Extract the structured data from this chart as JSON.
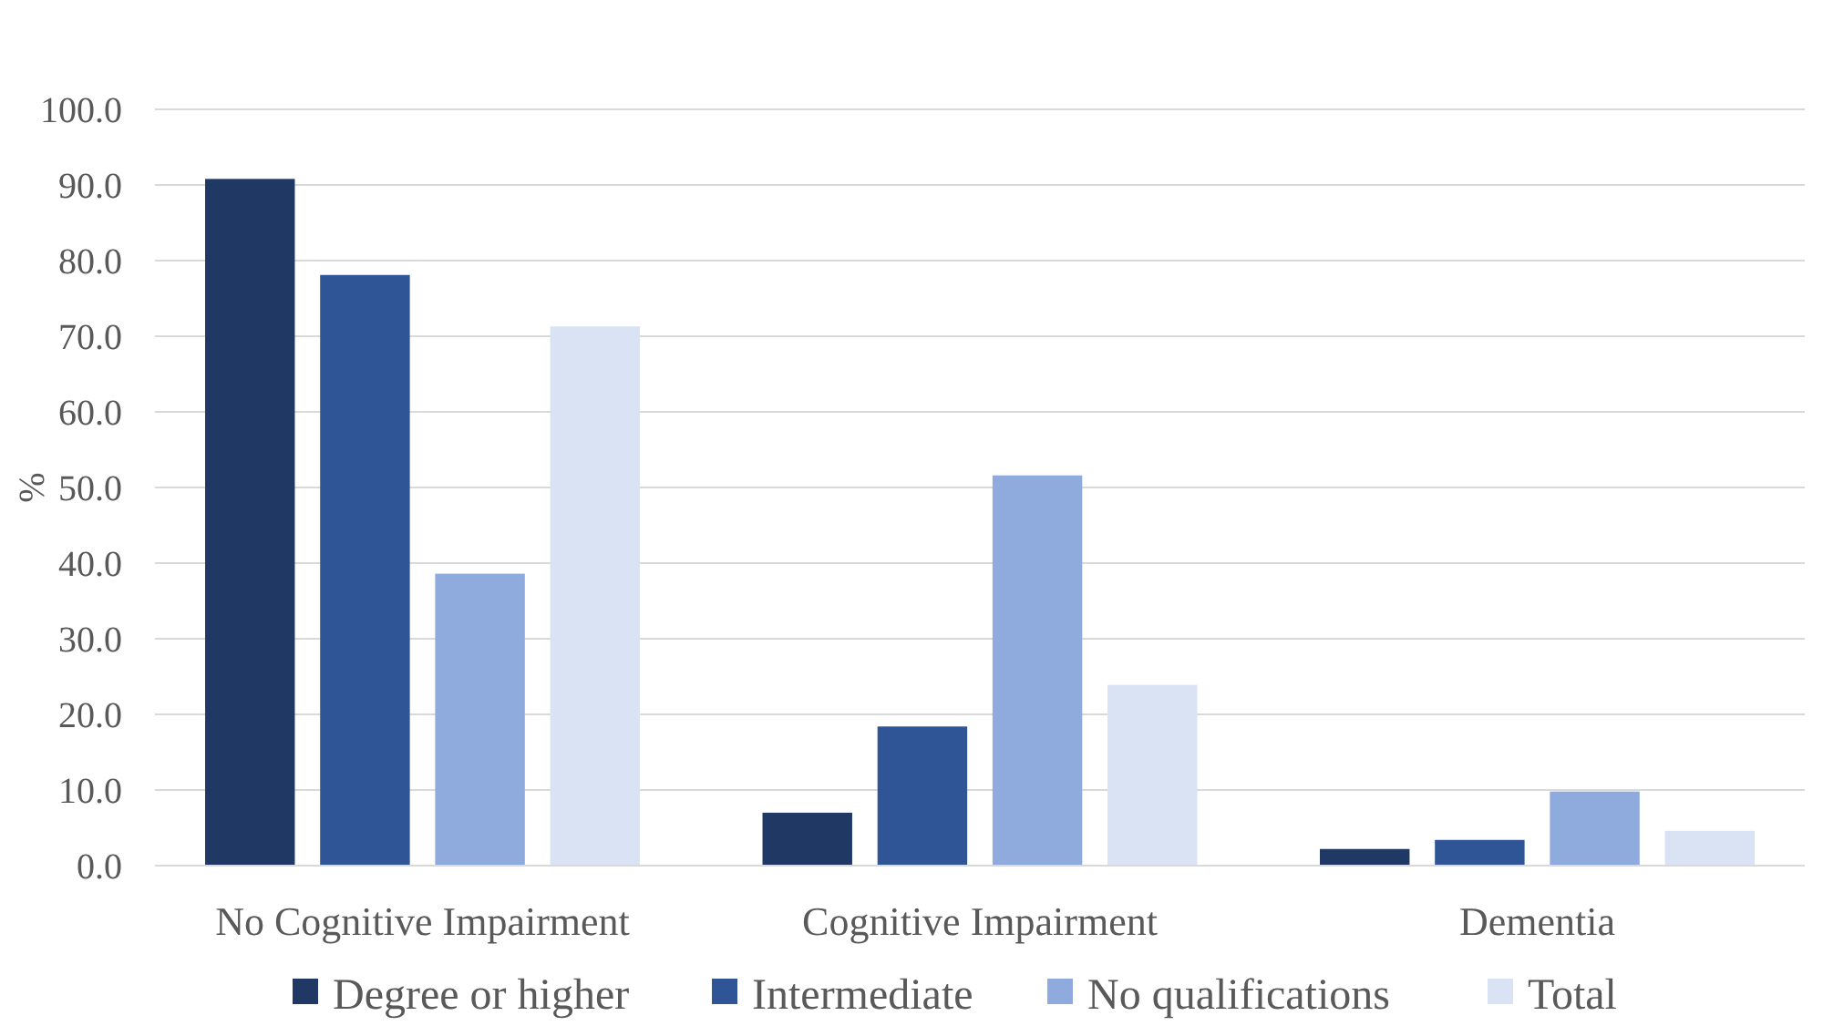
{
  "chart_data": {
    "type": "bar",
    "ylabel": "%",
    "categories": [
      "No Cognitive Impairment",
      "Cognitive Impairment",
      "Dementia"
    ],
    "series": [
      {
        "name": "Degree or higher",
        "color": "#1f3864",
        "values": [
          90.8,
          7.0,
          2.2
        ]
      },
      {
        "name": "Intermediate",
        "color": "#2f5597",
        "values": [
          78.1,
          18.4,
          3.4
        ]
      },
      {
        "name": "No qualifications",
        "color": "#8faadc",
        "values": [
          38.6,
          51.6,
          9.8
        ]
      },
      {
        "name": "Total",
        "color": "#dae3f3",
        "values": [
          71.3,
          23.9,
          4.6
        ]
      }
    ],
    "ylim": [
      0,
      100
    ],
    "yticks": [
      {
        "value": 0,
        "label": "0.0"
      },
      {
        "value": 10,
        "label": "10.0"
      },
      {
        "value": 20,
        "label": "20.0"
      },
      {
        "value": 30,
        "label": "30.0"
      },
      {
        "value": 40,
        "label": "40.0"
      },
      {
        "value": 50,
        "label": "50.0"
      },
      {
        "value": 60,
        "label": "60.0"
      },
      {
        "value": 70,
        "label": "70.0"
      },
      {
        "value": 80,
        "label": "80.0"
      },
      {
        "value": 90,
        "label": "90.0"
      },
      {
        "value": 100,
        "label": "100.0"
      }
    ],
    "grid": "y",
    "legend": "bottom"
  }
}
